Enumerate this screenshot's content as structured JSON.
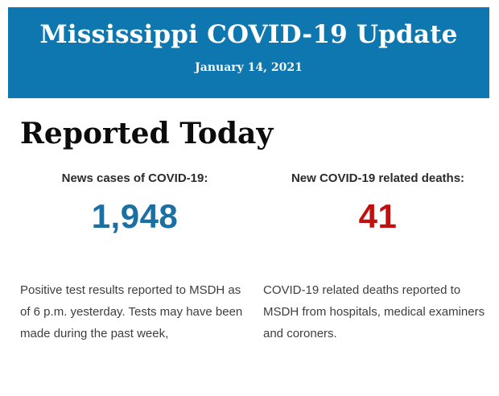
{
  "banner": {
    "title": "Mississippi COVID-19 Update",
    "date": "January 14, 2021",
    "background_color": "#0e77af",
    "text_color": "#ffffff"
  },
  "main": {
    "heading": "Reported Today",
    "stats": [
      {
        "label": "News cases of COVID-19:",
        "value": "1,948",
        "value_color": "#1a6fa3",
        "description": "Positive test results reported to MSDH as of 6 p.m. yesterday. Tests may have been made during the past week,"
      },
      {
        "label": "New COVID-19 related deaths:",
        "value": "41",
        "value_color": "#c01111",
        "description": "COVID-19 related deaths reported to MSDH from hospitals, medical examiners and coroners."
      }
    ]
  }
}
